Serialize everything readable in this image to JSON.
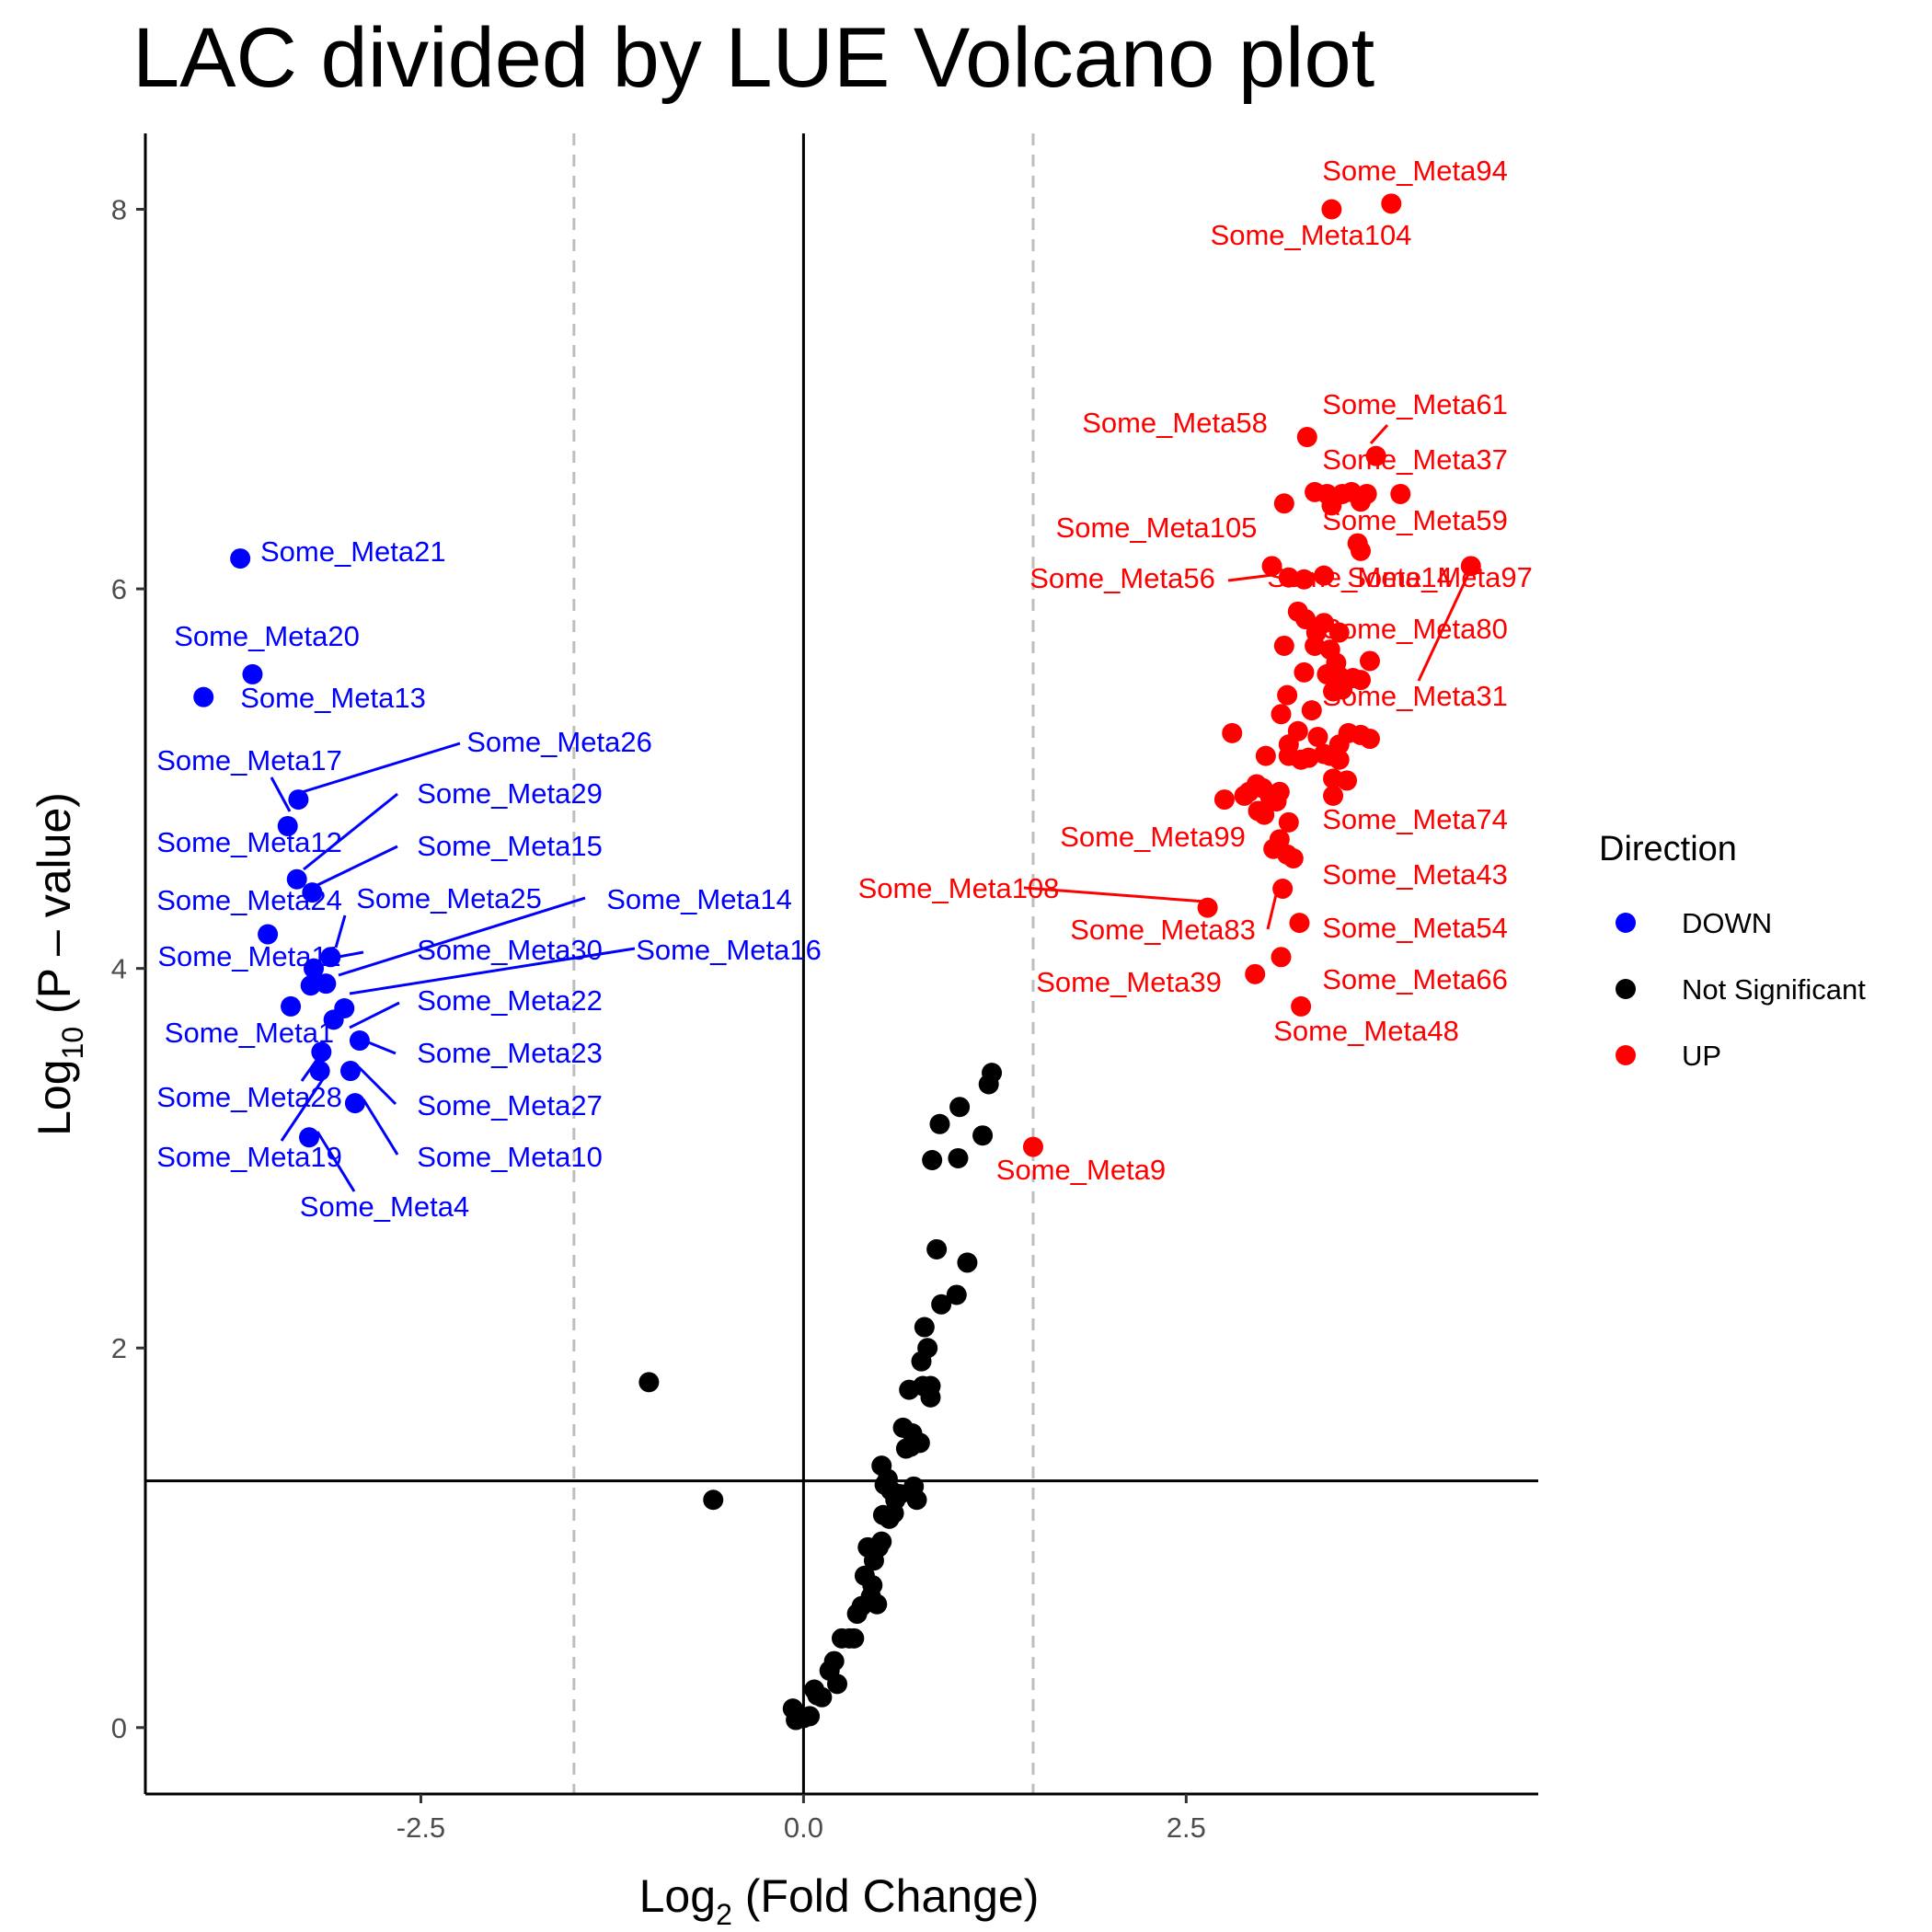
{
  "chart_data": {
    "type": "scatter",
    "title": "LAC divided by LUE Volcano plot",
    "xlabel": {
      "base": "Log",
      "sub": "2",
      "rest": " (Fold Change)"
    },
    "ylabel": {
      "base": "Log",
      "sub": "10",
      "rest": " (P – value)"
    },
    "xlim": [
      -4.3,
      4.8
    ],
    "ylim": [
      -0.35,
      8.4
    ],
    "x_ticks": [
      -2.5,
      0.0,
      2.5
    ],
    "x_tick_labels": [
      "-2.5",
      "0.0",
      "2.5"
    ],
    "y_ticks": [
      0,
      2,
      4,
      6,
      8
    ],
    "y_tick_labels": [
      "0",
      "2",
      "4",
      "6",
      "8"
    ],
    "grid": false,
    "reference_lines": {
      "vertical_dashed": [
        -1.5,
        1.5
      ],
      "vertical_solid": [
        0
      ],
      "horizontal_solid": [
        1.3
      ]
    },
    "legend": {
      "title": "Direction",
      "position": "right",
      "entries": [
        {
          "name": "DOWN",
          "color": "#0000ff"
        },
        {
          "name": "Not Significant",
          "color": "#000000"
        },
        {
          "name": "UP",
          "color": "#ff0000"
        }
      ]
    },
    "colors": {
      "DOWN": "#0000ff",
      "Not Significant": "#000000",
      "UP": "#ff0000"
    },
    "series": [
      {
        "name": "DOWN",
        "points": [
          [
            -3.68,
            6.16
          ],
          [
            -3.6,
            5.55
          ],
          [
            -3.92,
            5.43
          ],
          [
            -3.3,
            4.89
          ],
          [
            -3.37,
            4.75
          ],
          [
            -3.31,
            4.47
          ],
          [
            -3.21,
            4.4
          ],
          [
            -3.5,
            4.18
          ],
          [
            -3.09,
            4.06
          ],
          [
            -3.2,
            4.0
          ],
          [
            -3.12,
            3.92
          ],
          [
            -3.22,
            3.91
          ],
          [
            -3.35,
            3.8
          ],
          [
            -3.0,
            3.79
          ],
          [
            -3.07,
            3.73
          ],
          [
            -2.9,
            3.62
          ],
          [
            -3.15,
            3.56
          ],
          [
            -3.16,
            3.46
          ],
          [
            -2.96,
            3.46
          ],
          [
            -2.93,
            3.29
          ],
          [
            -3.23,
            3.11
          ]
        ]
      },
      {
        "name": "Not Significant",
        "points": [
          [
            -1.01,
            1.82
          ],
          [
            -0.59,
            1.2
          ],
          [
            -0.07,
            0.1
          ],
          [
            -0.05,
            0.04
          ],
          [
            0.0,
            0.05
          ],
          [
            0.04,
            0.06
          ],
          [
            0.07,
            0.2
          ],
          [
            0.09,
            0.17
          ],
          [
            0.12,
            0.16
          ],
          [
            0.17,
            0.3
          ],
          [
            0.2,
            0.35
          ],
          [
            0.22,
            0.23
          ],
          [
            0.25,
            0.47
          ],
          [
            0.3,
            0.47
          ],
          [
            0.33,
            0.47
          ],
          [
            0.35,
            0.6
          ],
          [
            0.38,
            0.64
          ],
          [
            0.4,
            0.8
          ],
          [
            0.42,
            0.95
          ],
          [
            0.44,
            0.69
          ],
          [
            0.45,
            0.75
          ],
          [
            0.46,
            0.88
          ],
          [
            0.48,
            0.65
          ],
          [
            0.49,
            0.95
          ],
          [
            0.51,
            0.98
          ],
          [
            0.51,
            1.38
          ],
          [
            0.52,
            1.12
          ],
          [
            0.53,
            1.28
          ],
          [
            0.55,
            1.31
          ],
          [
            0.56,
            1.1
          ],
          [
            0.57,
            1.25
          ],
          [
            0.59,
            1.13
          ],
          [
            0.6,
            1.2
          ],
          [
            0.63,
            1.23
          ],
          [
            0.65,
            1.58
          ],
          [
            0.67,
            1.47
          ],
          [
            0.69,
            1.78
          ],
          [
            0.7,
            1.48
          ],
          [
            0.71,
            1.55
          ],
          [
            0.72,
            1.27
          ],
          [
            0.74,
            1.2
          ],
          [
            0.76,
            1.5
          ],
          [
            0.77,
            1.93
          ],
          [
            0.78,
            1.8
          ],
          [
            0.79,
            2.11
          ],
          [
            0.81,
            2.0
          ],
          [
            0.83,
            1.8
          ],
          [
            0.83,
            1.74
          ],
          [
            0.84,
            2.99
          ],
          [
            0.87,
            2.52
          ],
          [
            0.89,
            3.18
          ],
          [
            0.9,
            2.23
          ],
          [
            1.0,
            2.28
          ],
          [
            1.01,
            3.0
          ],
          [
            1.02,
            3.27
          ],
          [
            1.07,
            2.45
          ],
          [
            1.17,
            3.12
          ],
          [
            1.21,
            3.39
          ],
          [
            1.23,
            3.45
          ]
        ]
      },
      {
        "name": "UP",
        "points": [
          [
            3.84,
            8.03
          ],
          [
            3.45,
            8.0
          ],
          [
            3.29,
            6.8
          ],
          [
            3.74,
            6.7
          ],
          [
            3.14,
            6.45
          ],
          [
            3.34,
            6.51
          ],
          [
            3.42,
            6.5
          ],
          [
            3.45,
            6.44
          ],
          [
            3.52,
            6.5
          ],
          [
            3.58,
            6.51
          ],
          [
            3.64,
            6.46
          ],
          [
            3.68,
            6.5
          ],
          [
            3.9,
            6.5
          ],
          [
            3.62,
            6.24
          ],
          [
            3.64,
            6.2
          ],
          [
            3.06,
            6.12
          ],
          [
            3.17,
            6.06
          ],
          [
            3.27,
            6.05
          ],
          [
            3.4,
            6.07
          ],
          [
            4.36,
            6.12
          ],
          [
            3.23,
            5.88
          ],
          [
            3.28,
            5.84
          ],
          [
            3.4,
            5.82
          ],
          [
            3.35,
            5.77
          ],
          [
            3.5,
            5.77
          ],
          [
            3.14,
            5.7
          ],
          [
            3.34,
            5.7
          ],
          [
            3.44,
            5.68
          ],
          [
            3.48,
            5.61
          ],
          [
            3.7,
            5.62
          ],
          [
            3.27,
            5.56
          ],
          [
            3.42,
            5.55
          ],
          [
            3.5,
            5.54
          ],
          [
            3.59,
            5.53
          ],
          [
            3.64,
            5.52
          ],
          [
            3.52,
            5.47
          ],
          [
            3.46,
            5.46
          ],
          [
            3.16,
            5.44
          ],
          [
            3.12,
            5.34
          ],
          [
            3.32,
            5.36
          ],
          [
            2.8,
            5.24
          ],
          [
            3.17,
            5.18
          ],
          [
            3.23,
            5.25
          ],
          [
            3.36,
            5.22
          ],
          [
            3.5,
            5.18
          ],
          [
            3.56,
            5.24
          ],
          [
            3.64,
            5.23
          ],
          [
            3.7,
            5.21
          ],
          [
            3.17,
            5.12
          ],
          [
            3.25,
            5.1
          ],
          [
            3.3,
            5.11
          ],
          [
            3.4,
            5.13
          ],
          [
            3.44,
            5.12
          ],
          [
            3.5,
            5.1
          ],
          [
            3.02,
            5.12
          ],
          [
            3.46,
            5.0
          ],
          [
            3.55,
            4.99
          ],
          [
            2.91,
            4.93
          ],
          [
            2.96,
            4.97
          ],
          [
            3.0,
            4.95
          ],
          [
            3.05,
            4.9
          ],
          [
            3.09,
            4.88
          ],
          [
            3.11,
            4.93
          ],
          [
            3.46,
            4.91
          ],
          [
            2.75,
            4.89
          ],
          [
            2.88,
            4.91
          ],
          [
            2.97,
            4.83
          ],
          [
            3.01,
            4.81
          ],
          [
            3.17,
            4.77
          ],
          [
            3.11,
            4.68
          ],
          [
            3.07,
            4.63
          ],
          [
            3.16,
            4.6
          ],
          [
            3.2,
            4.58
          ],
          [
            2.64,
            4.32
          ],
          [
            3.13,
            4.42
          ],
          [
            3.24,
            4.24
          ],
          [
            2.95,
            3.97
          ],
          [
            3.12,
            4.06
          ],
          [
            3.25,
            3.8
          ],
          [
            1.5,
            3.06
          ]
        ]
      }
    ],
    "labels": [
      {
        "text": "Some_Meta94",
        "series": "UP",
        "x": 3.84,
        "y": 8.03
      },
      {
        "text": "Some_Meta104",
        "series": "UP",
        "x": 3.45,
        "y": 8.0
      },
      {
        "text": "Some_Meta61",
        "series": "UP",
        "x": 3.74,
        "y": 6.7
      },
      {
        "text": "Some_Meta58",
        "series": "UP",
        "x": 3.29,
        "y": 6.8
      },
      {
        "text": "Some_Meta37",
        "series": "UP",
        "x": 3.58,
        "y": 6.51
      },
      {
        "text": "Some_Meta105",
        "series": "UP",
        "x": 3.06,
        "y": 6.12
      },
      {
        "text": "Some_Meta59",
        "series": "UP",
        "x": 3.62,
        "y": 6.24
      },
      {
        "text": "Some_Meta56",
        "series": "UP",
        "x": 3.17,
        "y": 6.06
      },
      {
        "text": "Some_Meta14",
        "series": "UP",
        "x": 3.4,
        "y": 5.82
      },
      {
        "text": "Some_Meta97",
        "series": "UP",
        "x": 4.36,
        "y": 6.12
      },
      {
        "text": "Some_Meta80",
        "series": "UP",
        "x": 3.5,
        "y": 5.77
      },
      {
        "text": "Some_Meta31",
        "series": "UP",
        "x": 4.36,
        "y": 6.12
      },
      {
        "text": "Some_Meta74",
        "series": "UP",
        "x": 3.17,
        "y": 4.77
      },
      {
        "text": "Some_Meta99",
        "series": "UP",
        "x": 3.07,
        "y": 4.63
      },
      {
        "text": "Some_Meta43",
        "series": "UP",
        "x": 3.2,
        "y": 4.58
      },
      {
        "text": "Some_Meta108",
        "series": "UP",
        "x": 2.64,
        "y": 4.32
      },
      {
        "text": "Some_Meta83",
        "series": "UP",
        "x": 3.13,
        "y": 4.42
      },
      {
        "text": "Some_Meta54",
        "series": "UP",
        "x": 3.24,
        "y": 4.24
      },
      {
        "text": "Some_Meta39",
        "series": "UP",
        "x": 2.95,
        "y": 3.97
      },
      {
        "text": "Some_Meta66",
        "series": "UP",
        "x": 3.12,
        "y": 4.06
      },
      {
        "text": "Some_Meta48",
        "series": "UP",
        "x": 3.25,
        "y": 3.8
      },
      {
        "text": "Some_Meta9",
        "series": "UP",
        "x": 1.5,
        "y": 3.06
      },
      {
        "text": "Some_Meta21",
        "series": "DOWN",
        "x": -3.68,
        "y": 6.16
      },
      {
        "text": "Some_Meta20",
        "series": "DOWN",
        "x": -3.6,
        "y": 5.55
      },
      {
        "text": "Some_Meta13",
        "series": "DOWN",
        "x": -3.92,
        "y": 5.43
      },
      {
        "text": "Some_Meta17",
        "series": "DOWN",
        "x": -3.37,
        "y": 4.75
      },
      {
        "text": "Some_Meta26",
        "series": "DOWN",
        "x": -3.3,
        "y": 4.89
      },
      {
        "text": "Some_Meta29",
        "series": "DOWN",
        "x": -3.31,
        "y": 4.47
      },
      {
        "text": "Some_Meta12",
        "series": "DOWN",
        "x": -3.31,
        "y": 4.47
      },
      {
        "text": "Some_Meta15",
        "series": "DOWN",
        "x": -3.21,
        "y": 4.4
      },
      {
        "text": "Some_Meta24",
        "series": "DOWN",
        "x": -3.5,
        "y": 4.18
      },
      {
        "text": "Some_Meta25",
        "series": "DOWN",
        "x": -3.09,
        "y": 4.06
      },
      {
        "text": "Some_Meta14",
        "series": "DOWN",
        "x": -3.12,
        "y": 3.92
      },
      {
        "text": "Some_Meta11",
        "series": "DOWN",
        "x": -3.2,
        "y": 4.0
      },
      {
        "text": "Some_Meta30",
        "series": "DOWN",
        "x": -3.22,
        "y": 3.91
      },
      {
        "text": "Some_Meta16",
        "series": "DOWN",
        "x": -3.07,
        "y": 3.73
      },
      {
        "text": "Some_Meta22",
        "series": "DOWN",
        "x": -3.0,
        "y": 3.79
      },
      {
        "text": "Some_Meta1",
        "series": "DOWN",
        "x": -3.35,
        "y": 3.8
      },
      {
        "text": "Some_Meta23",
        "series": "DOWN",
        "x": -2.9,
        "y": 3.62
      },
      {
        "text": "Some_Meta28",
        "series": "DOWN",
        "x": -3.16,
        "y": 3.46
      },
      {
        "text": "Some_Meta27",
        "series": "DOWN",
        "x": -2.96,
        "y": 3.46
      },
      {
        "text": "Some_Meta19",
        "series": "DOWN",
        "x": -3.15,
        "y": 3.56
      },
      {
        "text": "Some_Meta10",
        "series": "DOWN",
        "x": -2.93,
        "y": 3.29
      },
      {
        "text": "Some_Meta4",
        "series": "DOWN",
        "x": -3.23,
        "y": 3.11
      }
    ]
  }
}
